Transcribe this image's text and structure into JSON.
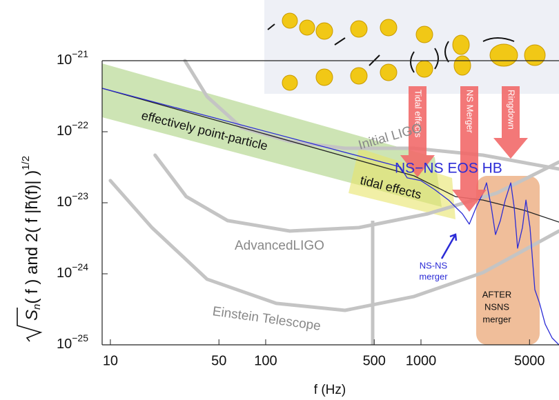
{
  "chart_data": {
    "type": "line",
    "x_label": "f (Hz)",
    "y_label": {
      "main": "S",
      "sub": "n",
      "rest": "( f )  and  2( f |h̃(f)| )",
      "sup": "1/2"
    },
    "log_x": true,
    "log_y": true,
    "xlim": [
      8.85,
      7740
    ],
    "ylim": [
      1e-25,
      1e-21
    ],
    "xticks": [
      10,
      50,
      100,
      500,
      1000,
      5000
    ],
    "yticks": [
      {
        "value": 1e-21,
        "label": "10",
        "exponent": "−21"
      },
      {
        "value": 1e-22,
        "label": "10",
        "exponent": "−22"
      },
      {
        "value": 1e-23,
        "label": "10",
        "exponent": "−23"
      },
      {
        "value": 1e-24,
        "label": "10",
        "exponent": "−24"
      },
      {
        "value": 1e-25,
        "label": "10",
        "exponent": "−25"
      }
    ],
    "series": [
      {
        "name": "Initial LIGO",
        "color": "#c4c4c4",
        "x": [
          30.2,
          41.9,
          69.9,
          143,
          324,
          903,
          2512,
          7740
        ],
        "values": [
          1e-21,
          3.13e-22,
          1.14e-22,
          7.3e-23,
          5.85e-23,
          5.85e-23,
          4.68e-23,
          2.99e-23
        ]
      },
      {
        "name": "AdvancedLIGO",
        "color": "#c4c4c4",
        "x": [
          19.4,
          30.8,
          56.9,
          143,
          398,
          1107,
          3080,
          7740
        ],
        "values": [
          4.68e-23,
          1.22e-23,
          5.6e-24,
          4e-24,
          4.47e-24,
          7e-24,
          1.37e-23,
          3.74e-23
        ]
      },
      {
        "name": "Einstein Telescope",
        "color": "#c4c4c4",
        "x": [
          10,
          18.5,
          41.9,
          117,
          324,
          903,
          2512,
          7740
        ],
        "values": [
          2.05e-23,
          4.47e-24,
          8.4e-25,
          3.83e-25,
          3.06e-25,
          4.79e-25,
          1.04e-24,
          4e-24
        ]
      },
      {
        "color": "#222222",
        "x": [
          8.85,
          903,
          1668,
          2512,
          4642,
          7740
        ],
        "values": [
          4.09e-22,
          2.39e-23,
          1.22e-23,
          1.09e-23,
          7.8e-24,
          5.35e-24
        ]
      },
      {
        "color": "#2b2bd6",
        "x": [
          8.85,
          735,
          815,
          1000,
          1227,
          1506,
          1668,
          1848,
          2047,
          2269,
          2512,
          2642,
          2838,
          3020,
          3245,
          3487,
          3784,
          3981,
          4189,
          4500,
          4742,
          5036,
          5410,
          5808,
          6310,
          6988,
          7740
        ],
        "values": [
          4.09e-22,
          3.2e-23,
          2.24e-23,
          2.05e-23,
          1.53e-23,
          1.09e-23,
          8.7e-24,
          7e-24,
          5e-24,
          8.7e-24,
          1.37e-23,
          1.91e-23,
          8.7e-24,
          3.57e-24,
          5.6e-24,
          1.09e-23,
          1.91e-23,
          8.7e-24,
          2.29e-24,
          4.47e-24,
          1.09e-23,
          4.47e-24,
          5.98e-25,
          3.83e-25,
          1.95e-25,
          1.25e-25,
          1e-25
        ]
      }
    ],
    "annotations": {
      "point_particle": "effectively point-particle",
      "tidal": "tidal effects",
      "eos": "NS−NS EOS HB",
      "merger": [
        "NS-NS",
        "merger"
      ],
      "after": [
        "AFTER",
        "NSNS",
        "merger"
      ],
      "arrows": [
        "Tidal effects",
        "NS Merger",
        "Ringdown"
      ]
    }
  }
}
